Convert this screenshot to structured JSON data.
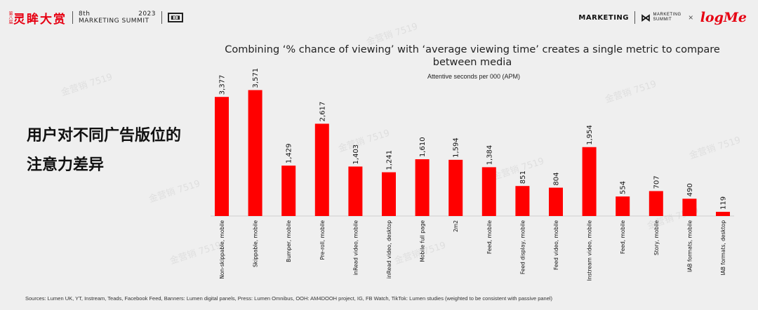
{
  "header": {
    "logo_vertical_text": "第八届",
    "logo_text": "灵眸大赏",
    "summit_line1_left": "8th",
    "summit_line1_right": "2023",
    "summit_line2": "MARKETING SUMMIT",
    "right_brand": "MARKETING",
    "right_summit_line1": "MARKETING",
    "right_summit_line2": "SUMMIT",
    "times": "×",
    "partner_logo": "logMe"
  },
  "side_title": {
    "line1": "用户对不同广告版位的",
    "line2": "注意力差异"
  },
  "chart_data": {
    "type": "bar",
    "title": "Combining ‘% chance of viewing’ with ‘average viewing time’ creates a single metric to compare between media",
    "subtitle": "Attentive seconds per 000 (APM)",
    "categories": [
      "Non-skippable, mobile",
      "Skippable, mobile",
      "Bumper, mobile",
      "Pre-roll, mobile",
      "inRead video, mobile",
      "inRead video, desktop",
      "Mobile full page",
      "2m2",
      "Feed, mobile",
      "Feed display, mobile",
      "Feed video, mobile",
      "Instream video, mobile",
      "Feed, mobile",
      "Story, mobile",
      "IAB formats, mobile",
      "IAB formats, desktop"
    ],
    "value_labels": [
      "3,377",
      "3,571",
      "1,429",
      "2,617",
      "1,403",
      "1,241",
      "1,610",
      "1,594",
      "1,384",
      "851",
      "804",
      "1,954",
      "554",
      "707",
      "490",
      "119"
    ],
    "values": [
      3377,
      3571,
      1429,
      2617,
      1403,
      1241,
      1610,
      1594,
      1384,
      851,
      804,
      1954,
      554,
      707,
      490,
      119
    ],
    "ylim": [
      0,
      3600
    ],
    "grid": false,
    "legend": "none",
    "bar_color": "#ff0000"
  },
  "source": "Sources: Lumen UK, YT, Instream, Teads, Facebook Feed, Banners: Lumen digital panels, Press: Lumen Omnibus, OOH: AM4DOOH project, IG, FB Watch, TikTok: Lumen studies (weighted to be consistent with passive panel)",
  "watermark": "金营销 7519"
}
